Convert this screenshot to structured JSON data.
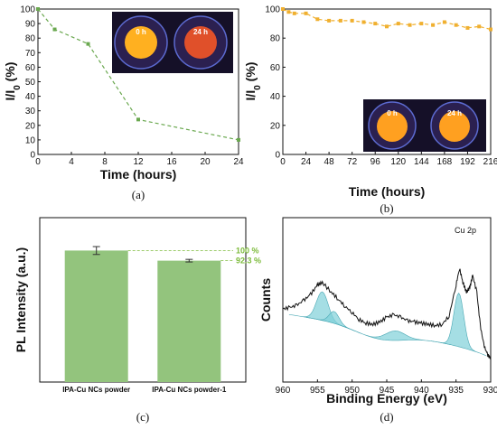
{
  "chart_data": [
    {
      "panel": "a",
      "type": "line",
      "caption": "(a)",
      "xlabel": "Time (hours)",
      "ylabel": "I/I",
      "ylabel_sub": "0",
      "ylabel_tail": " (%)",
      "xlim": [
        0,
        24
      ],
      "ylim": [
        0,
        100
      ],
      "xticks": [
        0,
        4,
        8,
        12,
        16,
        20,
        24
      ],
      "yticks": [
        0,
        10,
        20,
        30,
        40,
        50,
        60,
        70,
        80,
        90,
        100
      ],
      "color": "#6aa84f",
      "x": [
        0,
        2,
        6,
        12,
        24
      ],
      "y": [
        100,
        86,
        76,
        24,
        10
      ],
      "inset": {
        "labels": [
          "0 h",
          "24 h"
        ],
        "colors": [
          "#ffb020",
          "#e0502a"
        ]
      }
    },
    {
      "panel": "b",
      "type": "line",
      "caption": "(b)",
      "xlabel": "Time (hours)",
      "ylabel": "I/I",
      "ylabel_sub": "0",
      "ylabel_tail": " (%)",
      "xlim": [
        0,
        216
      ],
      "ylim": [
        0,
        100
      ],
      "xticks": [
        0,
        24,
        48,
        72,
        96,
        120,
        144,
        168,
        192,
        216
      ],
      "yticks": [
        0,
        20,
        40,
        60,
        80,
        100
      ],
      "color": "#f0b030",
      "x": [
        0,
        6,
        12,
        24,
        36,
        48,
        60,
        72,
        84,
        96,
        108,
        120,
        132,
        144,
        156,
        168,
        180,
        192,
        204,
        216
      ],
      "y": [
        100,
        98,
        97,
        97,
        93,
        92,
        92,
        92,
        91,
        90,
        88,
        90,
        89,
        90,
        89,
        91,
        89,
        87,
        88,
        86
      ],
      "inset": {
        "labels": [
          "0 h",
          "24 h"
        ],
        "colors": [
          "#ffa020",
          "#ffa020"
        ]
      }
    },
    {
      "panel": "c",
      "type": "bar",
      "caption": "(c)",
      "ylabel": "PL Intensity (a.u.)",
      "categories": [
        "IPA-Cu NCs powder",
        "IPA-Cu NCs powder-1"
      ],
      "values": [
        100,
        92.3
      ],
      "errors": [
        3,
        1
      ],
      "value_labels": [
        "100 %",
        "92.3 %"
      ],
      "ymax": 125,
      "color": "#93c47d"
    },
    {
      "panel": "d",
      "type": "line",
      "caption": "(d)",
      "title": "Cu 2p",
      "xlabel": "Binding Energy (eV)",
      "ylabel": "Counts",
      "xlim": [
        960,
        930
      ],
      "xticks": [
        960,
        955,
        950,
        945,
        940,
        935,
        930
      ],
      "ylim": [
        0,
        100
      ],
      "x": [
        960,
        959,
        958,
        957,
        956,
        955,
        954.3,
        953,
        952,
        951,
        950,
        949,
        948,
        947,
        946,
        945,
        944,
        943,
        942,
        941,
        940,
        939,
        938,
        937,
        936,
        935,
        934.5,
        934,
        933.5,
        933,
        932.6,
        932,
        931.5,
        931,
        930.5,
        930
      ],
      "y": [
        44,
        45,
        47,
        51,
        56,
        64,
        66,
        58,
        52,
        46,
        41,
        35,
        32,
        31,
        33,
        37,
        39,
        37,
        34,
        33,
        32,
        31,
        30,
        31,
        38,
        64,
        78,
        66,
        58,
        62,
        72,
        58,
        30,
        14,
        6,
        2
      ],
      "fit_peaks": [
        {
          "center": 954.3,
          "height": 24,
          "width": 1.2
        },
        {
          "center": 952.6,
          "height": 10,
          "width": 1.0
        },
        {
          "center": 943.8,
          "height": 8,
          "width": 2.0
        },
        {
          "center": 934.6,
          "height": 45,
          "width": 1.0
        },
        {
          "center": 932.6,
          "height": 41,
          "width": 0.8
        }
      ],
      "line_color": "#111111",
      "fill_color": "#7fd0d8"
    }
  ]
}
